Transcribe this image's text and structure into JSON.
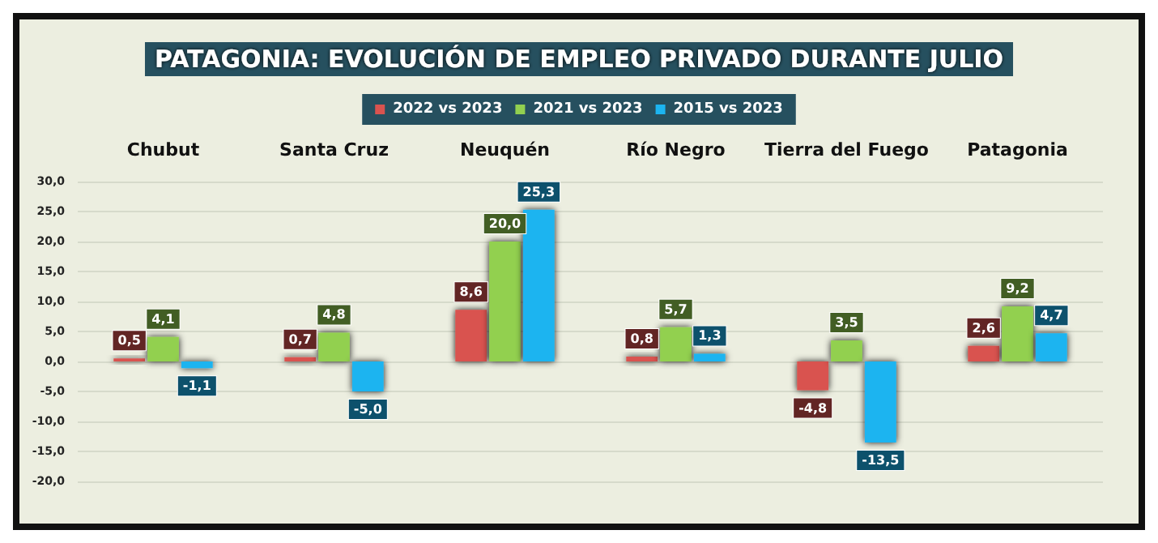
{
  "chart_data": {
    "type": "bar",
    "title": "PATAGONIA: EVOLUCIÓN DE EMPLEO PRIVADO DURANTE JULIO",
    "categories": [
      "Chubut",
      "Santa Cruz",
      "Neuquén",
      "Río Negro",
      "Tierra del Fuego",
      "Patagonia"
    ],
    "series": [
      {
        "name": "2022 vs 2023",
        "color": "#d9534f",
        "values": [
          0.5,
          0.7,
          8.6,
          0.8,
          -4.8,
          2.6
        ],
        "value_labels": [
          "0,5",
          "0,7",
          "8,6",
          "0,8",
          "-4,8",
          "2,6"
        ]
      },
      {
        "name": "2021 vs 2023",
        "color": "#92d050",
        "values": [
          4.1,
          4.8,
          20.0,
          5.7,
          3.5,
          9.2
        ],
        "value_labels": [
          "4,1",
          "4,8",
          "20,0",
          "5,7",
          "3,5",
          "9,2"
        ]
      },
      {
        "name": "2015 vs 2023",
        "color": "#1cb4f0",
        "values": [
          -1.1,
          -5.0,
          25.3,
          1.3,
          -13.5,
          4.7
        ],
        "value_labels": [
          "-1,1",
          "-5,0",
          "25,3",
          "1,3",
          "-13,5",
          "4,7"
        ]
      }
    ],
    "ylim": [
      -20,
      30
    ],
    "yticks": [
      {
        "value": -20,
        "label": "-20,0"
      },
      {
        "value": -15,
        "label": "-15,0"
      },
      {
        "value": -10,
        "label": "-10,0"
      },
      {
        "value": -5,
        "label": "-5,0"
      },
      {
        "value": 0,
        "label": "0,0"
      },
      {
        "value": 5,
        "label": "5,0"
      },
      {
        "value": 10,
        "label": "10,0"
      },
      {
        "value": 15,
        "label": "15,0"
      },
      {
        "value": 20,
        "label": "20,0"
      },
      {
        "value": 25,
        "label": "25,0"
      },
      {
        "value": 30,
        "label": "30,0"
      }
    ],
    "grid": "y",
    "legend": "top"
  }
}
